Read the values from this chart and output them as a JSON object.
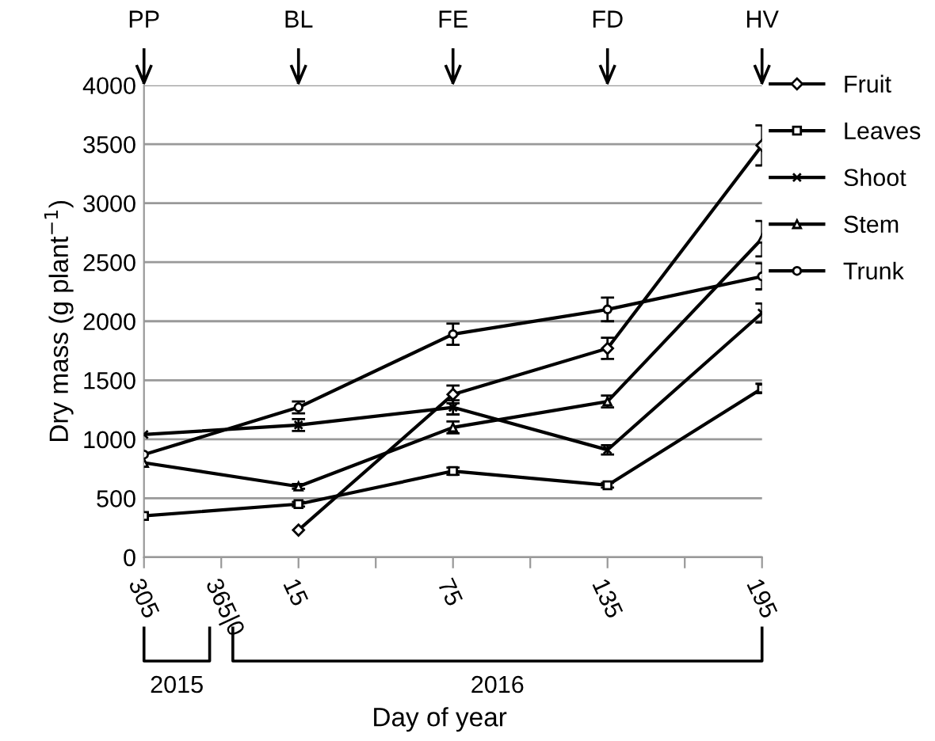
{
  "chart_data": {
    "type": "line",
    "xlabel": "Day of year",
    "ylabel": "Dry mass (g plant$^{−1}$)",
    "categories": [
      "305",
      "365|0",
      "15",
      null,
      "75",
      null,
      "135",
      null,
      "195"
    ],
    "ylim": [
      0,
      4000
    ],
    "yticks": [
      0,
      500,
      1000,
      1500,
      2000,
      2500,
      3000,
      3500,
      4000
    ],
    "grid": "y",
    "legend": "right",
    "line_style": "solid",
    "series": [
      {
        "name": "Fruit",
        "color": "#000000",
        "marker": "diamond",
        "values": [
          null,
          null,
          230,
          null,
          1380,
          null,
          1770,
          null,
          3490
        ],
        "errors": [
          null,
          null,
          null,
          null,
          75,
          null,
          90,
          null,
          170
        ]
      },
      {
        "name": "Leaves",
        "color": "#000000",
        "marker": "square",
        "values": [
          350,
          null,
          450,
          null,
          730,
          null,
          610,
          null,
          1430
        ],
        "errors": [
          null,
          null,
          20,
          null,
          30,
          null,
          20,
          null,
          40
        ]
      },
      {
        "name": "Shoot",
        "color": "#000000",
        "marker": "cross",
        "values": [
          1040,
          null,
          1120,
          null,
          1270,
          null,
          910,
          null,
          2070
        ],
        "errors": [
          null,
          null,
          50,
          null,
          60,
          null,
          40,
          null,
          80
        ]
      },
      {
        "name": "Stem",
        "color": "#000000",
        "marker": "triangle",
        "values": [
          800,
          null,
          600,
          null,
          1100,
          null,
          1320,
          null,
          2700
        ],
        "errors": [
          null,
          null,
          20,
          null,
          50,
          null,
          50,
          null,
          150
        ]
      },
      {
        "name": "Trunk",
        "color": "#000000",
        "marker": "circle",
        "values": [
          870,
          null,
          1270,
          null,
          1890,
          null,
          2100,
          null,
          2380
        ],
        "errors": [
          null,
          null,
          50,
          null,
          90,
          null,
          100,
          null,
          110
        ]
      }
    ],
    "annotations": [
      "PP",
      "BL",
      "FE",
      "FD",
      "HV",
      "2015",
      "2016"
    ]
  }
}
